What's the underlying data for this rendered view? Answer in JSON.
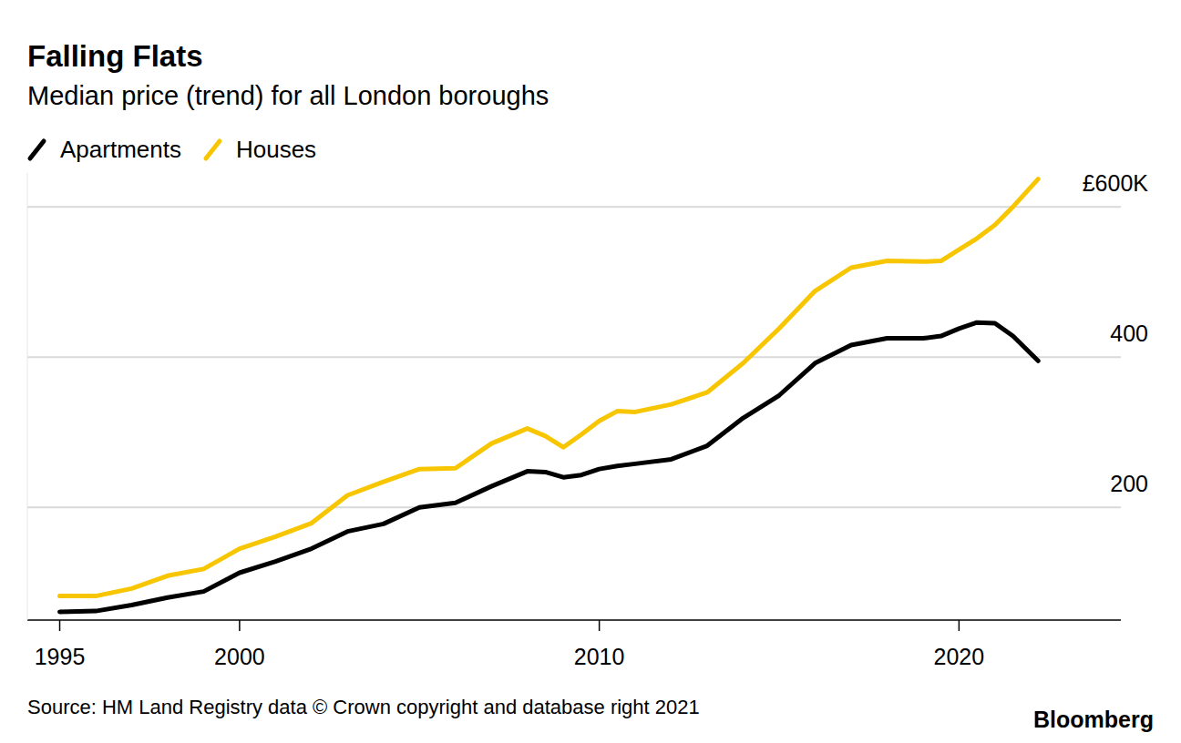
{
  "chart_data": {
    "type": "line",
    "title": "Falling Flats",
    "subtitle": "Median price (trend) for all London boroughs",
    "source": "Source: HM Land Registry data © Crown copyright and database right 2021",
    "credit": "Bloomberg",
    "x": [
      1995,
      1996,
      1997,
      1998,
      1999,
      2000,
      2001,
      2002,
      2003,
      2004,
      2005,
      2006,
      2007,
      2008,
      2008.5,
      2009,
      2009.5,
      2010,
      2010.5,
      2011,
      2012,
      2013,
      2014,
      2015,
      2016,
      2017,
      2018,
      2019,
      2019.5,
      2020,
      2020.5,
      2021,
      2021.5,
      2022.2
    ],
    "series": [
      {
        "name": "Apartments",
        "color": "#000000",
        "values": [
          61,
          62,
          70,
          80,
          88,
          113,
          128,
          145,
          168,
          178,
          200,
          206,
          228,
          248,
          247,
          240,
          243,
          251,
          255,
          258,
          264,
          282,
          319,
          349,
          392,
          416,
          425,
          425,
          428,
          438,
          446,
          445,
          428,
          395
        ]
      },
      {
        "name": "Houses",
        "color": "#f7c600",
        "values": [
          82,
          82,
          92,
          109,
          118,
          145,
          161,
          179,
          216,
          234,
          251,
          252,
          285,
          305,
          295,
          280,
          297,
          315,
          328,
          327,
          337,
          353,
          392,
          438,
          488,
          519,
          528,
          527,
          528,
          543,
          558,
          576,
          600,
          637
        ]
      }
    ],
    "xlim": [
      1994.1,
      2024.5
    ],
    "xticks": [
      1995,
      2000,
      2010,
      2020
    ],
    "ylim": [
      50,
      645
    ],
    "yticks": [
      200,
      400,
      {
        "value": 600,
        "label": "£600K"
      }
    ],
    "grid": true,
    "legend": "top-left"
  }
}
